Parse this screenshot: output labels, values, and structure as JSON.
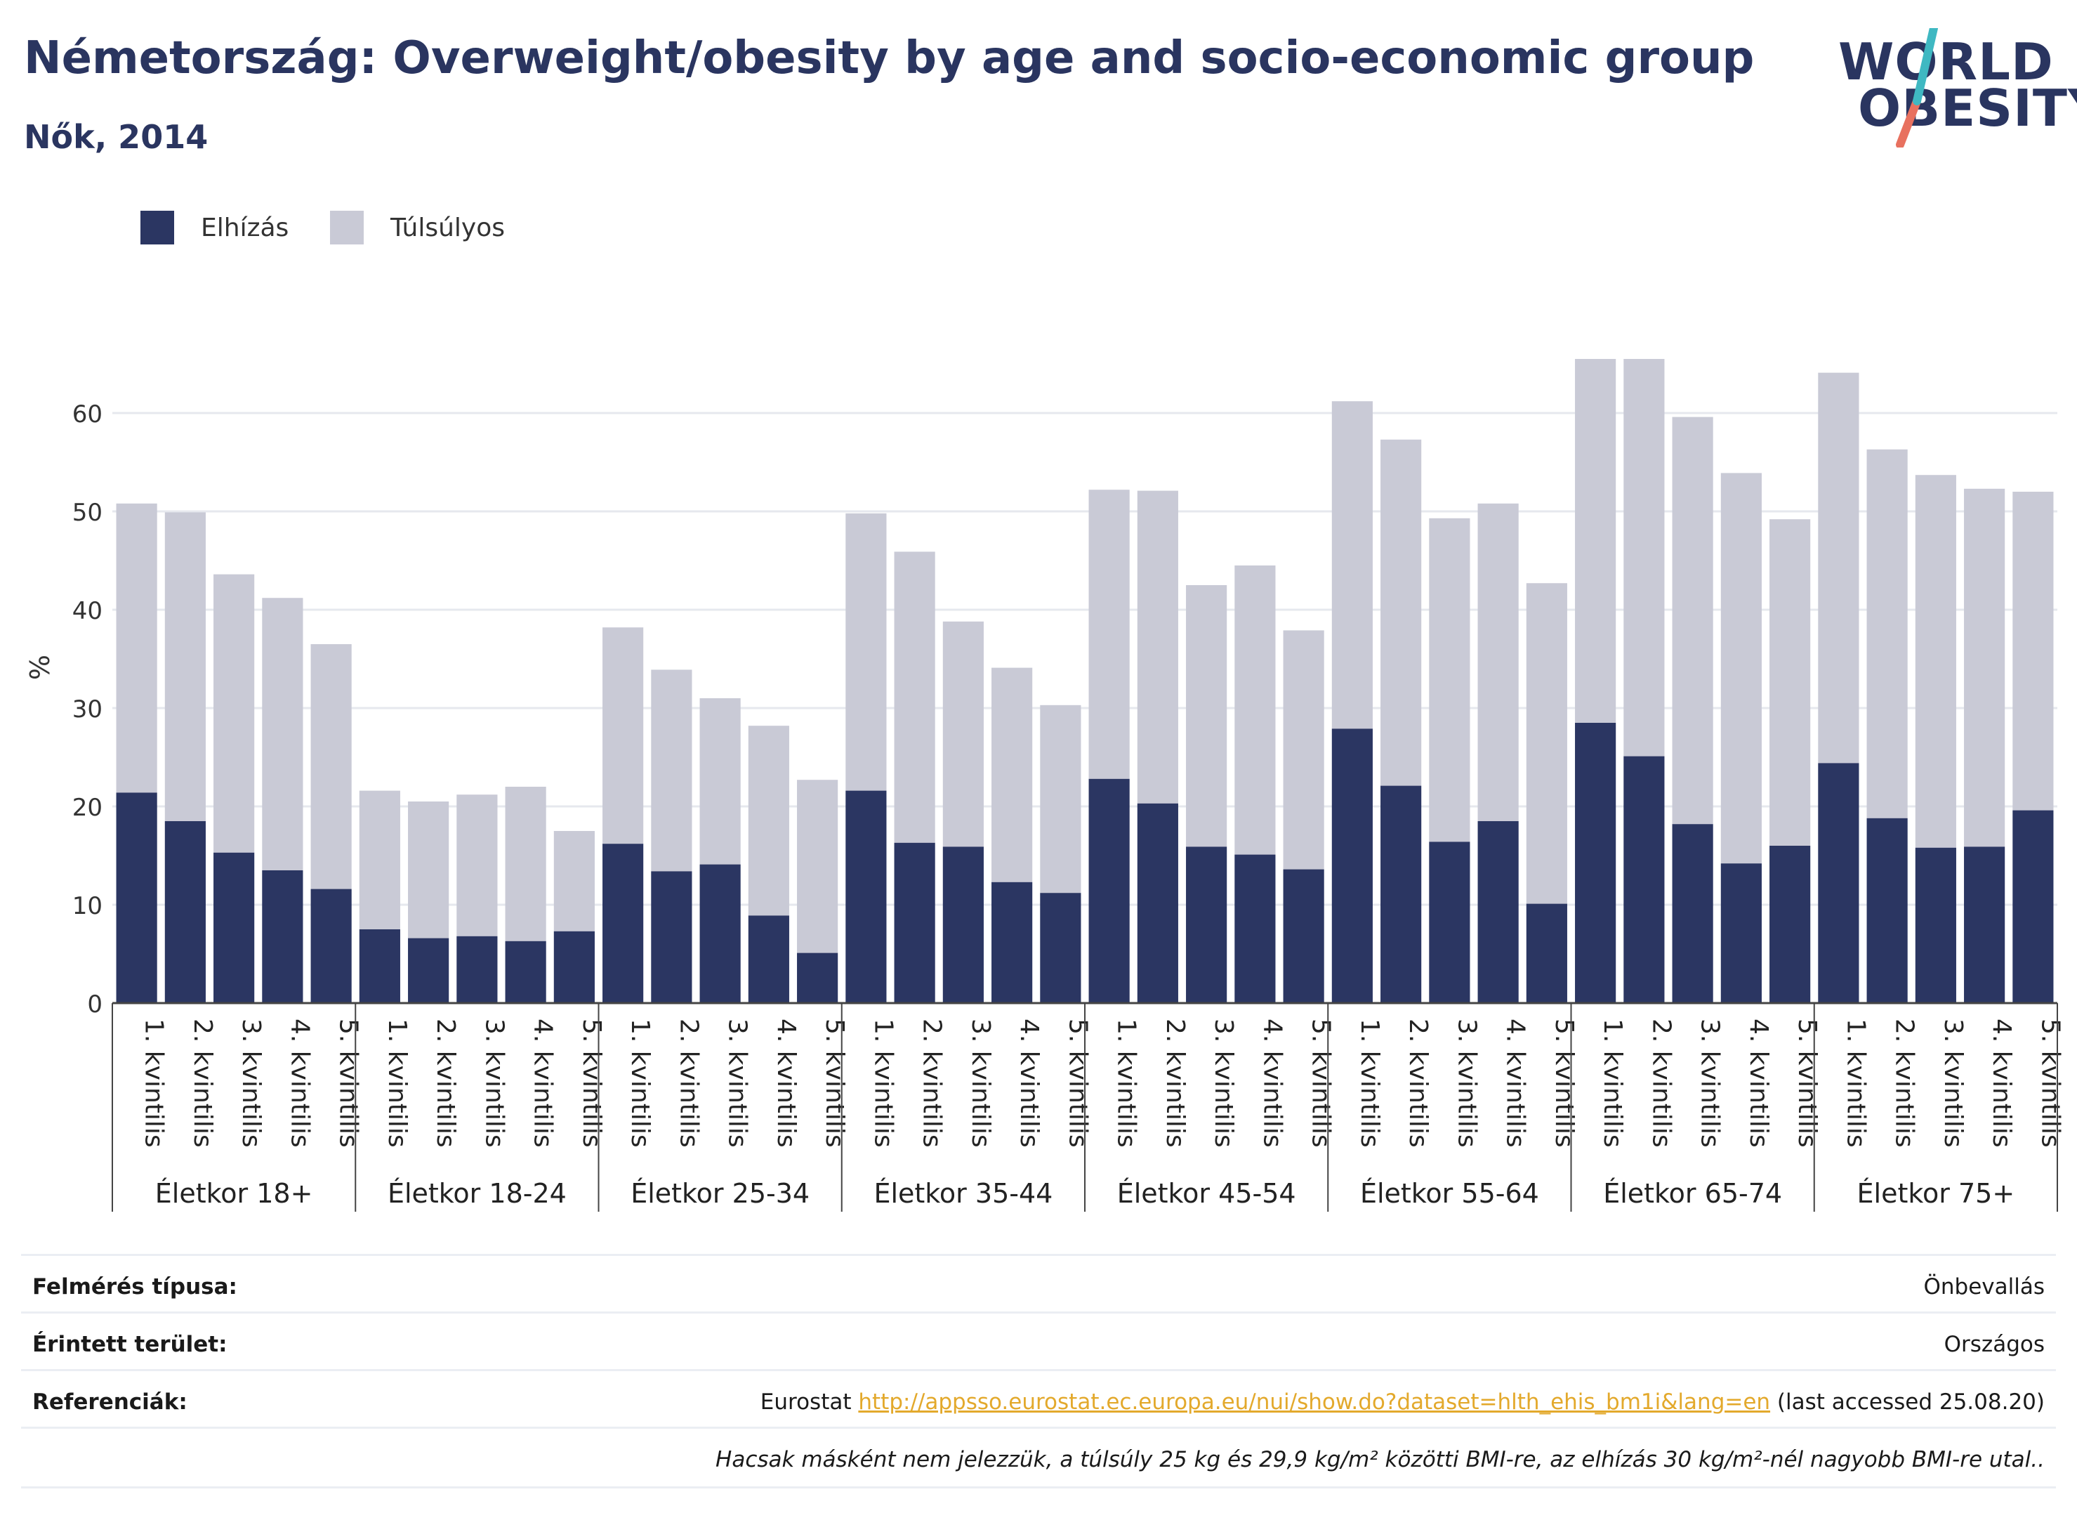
{
  "header": {
    "title": "Németország: Overweight/obesity by age and socio-economic group",
    "subtitle": "Nők, 2014"
  },
  "logo": {
    "line1": "WORLD",
    "line2": "OBESITY",
    "colors": {
      "text": "#2a3560",
      "slash_top": "#3fb8c2",
      "slash_bottom": "#e8715f"
    }
  },
  "legend": [
    {
      "label": "Elhízás",
      "color": "#2b3662"
    },
    {
      "label": "Túlsúlyos",
      "color": "#c9cad6"
    }
  ],
  "chart_data": {
    "type": "bar",
    "stacked": true,
    "ylabel": "%",
    "ylim": [
      0,
      68
    ],
    "yticks": [
      0,
      10,
      20,
      30,
      40,
      50,
      60
    ],
    "grid": true,
    "legend_position": "top-left",
    "subcategories": [
      "1. kvintilis",
      "2. kvintilis",
      "3. kvintilis",
      "4. kvintilis",
      "5. kvintilis"
    ],
    "groups": [
      {
        "label": "Életkor 18+",
        "obesity": [
          21.4,
          18.5,
          15.3,
          13.5,
          11.6
        ],
        "overweight": [
          29.4,
          31.4,
          28.3,
          27.7,
          24.9
        ]
      },
      {
        "label": "Életkor 18-24",
        "obesity": [
          7.5,
          6.6,
          6.8,
          6.3,
          7.3
        ],
        "overweight": [
          14.1,
          13.9,
          14.4,
          15.7,
          10.2
        ]
      },
      {
        "label": "Életkor 25-34",
        "obesity": [
          16.2,
          13.4,
          14.1,
          8.9,
          5.1
        ],
        "overweight": [
          22.0,
          20.5,
          16.9,
          19.3,
          17.6
        ]
      },
      {
        "label": "Életkor 35-44",
        "obesity": [
          21.6,
          16.3,
          15.9,
          12.3,
          11.2
        ],
        "overweight": [
          28.2,
          29.6,
          22.9,
          21.8,
          19.1
        ]
      },
      {
        "label": "Életkor 45-54",
        "obesity": [
          22.8,
          20.3,
          15.9,
          15.1,
          13.6
        ],
        "overweight": [
          29.4,
          31.8,
          26.6,
          29.4,
          24.3
        ]
      },
      {
        "label": "Életkor 55-64",
        "obesity": [
          27.9,
          22.1,
          16.4,
          18.5,
          10.1
        ],
        "overweight": [
          33.3,
          35.2,
          32.9,
          32.3,
          32.6
        ]
      },
      {
        "label": "Életkor 65-74",
        "obesity": [
          28.5,
          25.1,
          18.2,
          14.2,
          16.0
        ],
        "overweight": [
          37.0,
          40.4,
          41.4,
          39.7,
          33.2
        ]
      },
      {
        "label": "Életkor 75+",
        "obesity": [
          24.4,
          18.8,
          15.8,
          15.9,
          19.6
        ],
        "overweight": [
          39.7,
          37.5,
          37.9,
          36.4,
          32.4
        ]
      }
    ]
  },
  "meta": {
    "survey_type": {
      "label": "Felmérés típusa:",
      "value": "Önbevallás"
    },
    "area": {
      "label": "Érintett terület:",
      "value": "Országos"
    },
    "references": {
      "label": "Referenciák:",
      "source": "Eurostat",
      "link": "http://appsso.eurostat.ec.europa.eu/nui/show.do?dataset=hlth_ehis_bm1i&lang=en",
      "accessed": "(last accessed 25.08.20)"
    },
    "note": "Hacsak másként nem jelezzük, a túlsúly 25 kg és 29,9 kg/m² közötti BMI-re, az elhízás 30 kg/m²-nél nagyobb BMI-re utal.."
  }
}
